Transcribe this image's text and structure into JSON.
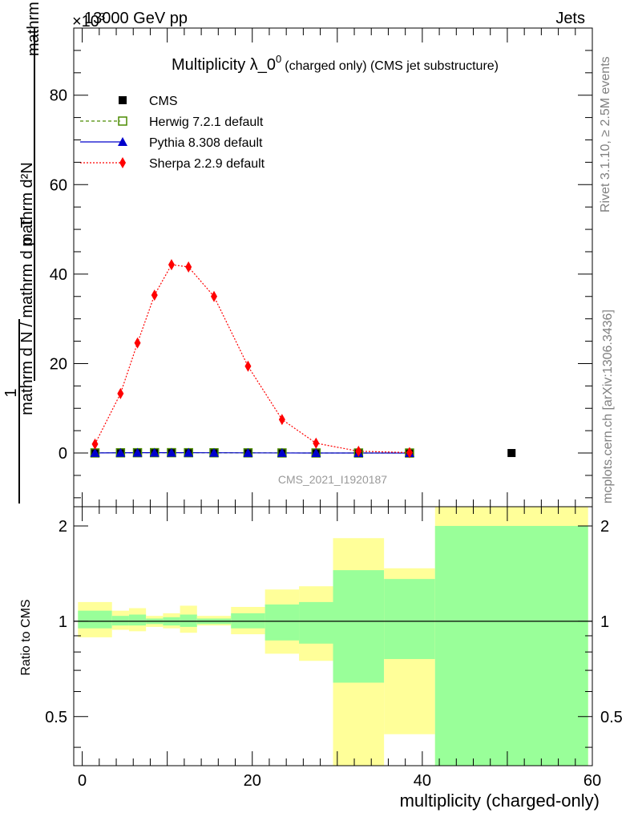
{
  "header": {
    "left": "13000 GeV pp",
    "right": "Jets",
    "exponent": "×10^3"
  },
  "side_text": {
    "top": "Rivet 3.1.10, ≥ 2.5M events",
    "bottom": "mcplots.cern.ch [arXiv:1306.3436]"
  },
  "watermark": "CMS_2021_I1920187",
  "chart_data": [
    {
      "type": "line",
      "title": "Multiplicity λ_0^0 (charged only) (CMS jet substructure)",
      "title_main": "Multiplicity λ_0",
      "title_sup": "0",
      "title_rest": "(charged only) (CMS jet substructure)",
      "ylabel": "1 / (mathrm d N / mathrm d p_T) · mathrm d²N / (mathrm d p_T mathrm d lambda)",
      "ylabel_parts": {
        "top_numerator": "mathrm d²N",
        "top_denominator": "mathrm d p_T mathrm d lambda",
        "bottom_one": "1",
        "bottom_denominator": "mathrm d N / mathrm d p_T"
      },
      "xlim": [
        -1,
        60
      ],
      "ylim": [
        -12,
        95
      ],
      "y_scale_note": "×10^3",
      "y_ticks": [
        0,
        20,
        40,
        60,
        80
      ],
      "legend_position": "top-left",
      "series": [
        {
          "name": "CMS",
          "color": "#000000",
          "marker": "square",
          "x": [
            1.5,
            4.5,
            6.5,
            8.5,
            10.5,
            12.5,
            15.5,
            19.5,
            23.5,
            27.5,
            32.5,
            38.5,
            50.5
          ],
          "y": [
            0.02,
            0.05,
            0.07,
            0.08,
            0.08,
            0.07,
            0.06,
            0.04,
            0.02,
            0.01,
            0.004,
            0.001,
            0.0002
          ]
        },
        {
          "name": "Herwig 7.2.1 default",
          "color": "#4b8b00",
          "marker": "open-square",
          "linestyle": "dashed",
          "x": [
            1.5,
            4.5,
            6.5,
            8.5,
            10.5,
            12.5,
            15.5,
            19.5,
            23.5,
            27.5,
            32.5,
            38.5
          ],
          "y": [
            0.02,
            0.05,
            0.07,
            0.08,
            0.08,
            0.07,
            0.06,
            0.04,
            0.02,
            0.01,
            0.004,
            0.001
          ]
        },
        {
          "name": "Pythia 8.308 default",
          "color": "#0000cc",
          "marker": "triangle",
          "linestyle": "solid",
          "x": [
            1.5,
            4.5,
            6.5,
            8.5,
            10.5,
            12.5,
            15.5,
            19.5,
            23.5,
            27.5,
            32.5,
            38.5
          ],
          "y": [
            0.02,
            0.05,
            0.07,
            0.08,
            0.08,
            0.07,
            0.06,
            0.04,
            0.02,
            0.01,
            0.004,
            0.001
          ]
        },
        {
          "name": "Sherpa 2.2.9 default",
          "color": "#ff0000",
          "marker": "diamond",
          "linestyle": "dotted",
          "x": [
            1.5,
            4.5,
            6.5,
            8.5,
            10.5,
            12.5,
            15.5,
            19.5,
            23.5,
            27.5,
            32.5,
            38.5
          ],
          "y": [
            2.0,
            13.3,
            24.6,
            35.3,
            42.1,
            41.6,
            35.0,
            19.4,
            7.5,
            2.2,
            0.4,
            0.1
          ]
        }
      ]
    },
    {
      "type": "area",
      "ylabel": "Ratio to CMS",
      "xlabel": "multiplicity (charged-only)",
      "xlim": [
        -1,
        60
      ],
      "ylim": [
        0.35,
        2.3
      ],
      "y_scale": "log",
      "y_ticks": [
        0.5,
        1,
        2
      ],
      "x_ticks": [
        0,
        20,
        40,
        60
      ],
      "reference_line": 1,
      "bins": [
        {
          "x0": -0.5,
          "x1": 3.5,
          "green": [
            0.95,
            1.08
          ],
          "yellow": [
            0.89,
            1.15
          ]
        },
        {
          "x0": 3.5,
          "x1": 5.5,
          "green": [
            0.97,
            1.04
          ],
          "yellow": [
            0.94,
            1.08
          ]
        },
        {
          "x0": 5.5,
          "x1": 7.5,
          "green": [
            0.97,
            1.05
          ],
          "yellow": [
            0.93,
            1.1
          ]
        },
        {
          "x0": 7.5,
          "x1": 9.5,
          "green": [
            0.98,
            1.02
          ],
          "yellow": [
            0.96,
            1.04
          ]
        },
        {
          "x0": 9.5,
          "x1": 11.5,
          "green": [
            0.97,
            1.03
          ],
          "yellow": [
            0.95,
            1.06
          ]
        },
        {
          "x0": 11.5,
          "x1": 13.5,
          "green": [
            0.96,
            1.05
          ],
          "yellow": [
            0.92,
            1.12
          ]
        },
        {
          "x0": 13.5,
          "x1": 17.5,
          "green": [
            0.98,
            1.02
          ],
          "yellow": [
            0.97,
            1.04
          ]
        },
        {
          "x0": 17.5,
          "x1": 21.5,
          "green": [
            0.95,
            1.06
          ],
          "yellow": [
            0.91,
            1.11
          ]
        },
        {
          "x0": 21.5,
          "x1": 25.5,
          "green": [
            0.87,
            1.13
          ],
          "yellow": [
            0.79,
            1.26
          ]
        },
        {
          "x0": 25.5,
          "x1": 29.5,
          "green": [
            0.85,
            1.15
          ],
          "yellow": [
            0.75,
            1.29
          ]
        },
        {
          "x0": 29.5,
          "x1": 35.5,
          "green": [
            0.64,
            1.45
          ],
          "yellow": [
            0.35,
            1.83
          ]
        },
        {
          "x0": 35.5,
          "x1": 41.5,
          "green": [
            0.76,
            1.36
          ],
          "yellow": [
            0.44,
            1.47
          ]
        },
        {
          "x0": 41.5,
          "x1": 59.5,
          "green": [
            0.35,
            2.0
          ],
          "yellow": [
            0.35,
            2.3
          ]
        }
      ],
      "band_colors": {
        "inner": "#99ff99",
        "outer": "#ffff99"
      }
    }
  ]
}
